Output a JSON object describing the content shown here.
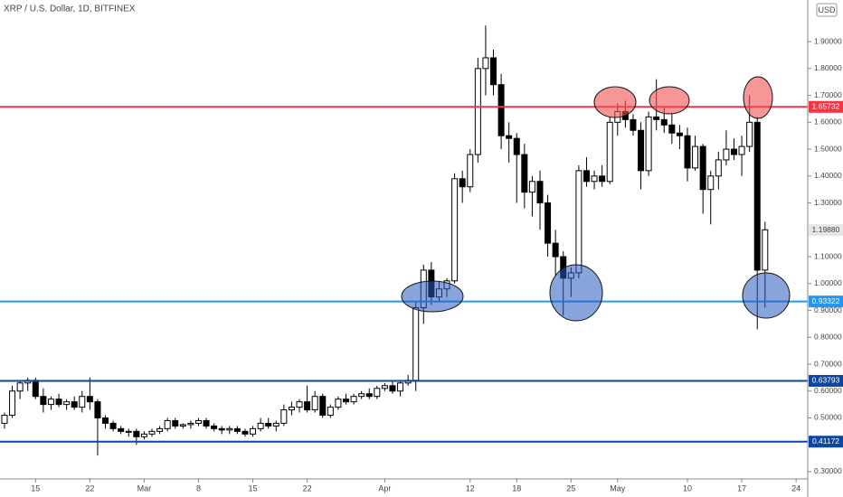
{
  "chart_data": {
    "type": "candlestick",
    "title": "XRP / U.S. Dollar, 1D, BITFINEX",
    "currency": "USD",
    "open": [
      0.48,
      0.51,
      0.6,
      0.63,
      0.64,
      0.58,
      0.55,
      0.57,
      0.55,
      0.56,
      0.54,
      0.58,
      0.56,
      0.5,
      0.48,
      0.46,
      0.45,
      0.45,
      0.43,
      0.44,
      0.45,
      0.46,
      0.49,
      0.47,
      0.475,
      0.48,
      0.49,
      0.47,
      0.46,
      0.455,
      0.46,
      0.45,
      0.44,
      0.46,
      0.48,
      0.47,
      0.48,
      0.53,
      0.54,
      0.56,
      0.53,
      0.58,
      0.51,
      0.54,
      0.57,
      0.56,
      0.58,
      0.59,
      0.58,
      0.61,
      0.62,
      0.6,
      0.63,
      0.64,
      0.91,
      1.05,
      0.95,
      0.98,
      1.01,
      1.39,
      1.36,
      1.48,
      1.8,
      1.84,
      1.74,
      1.55,
      1.54,
      1.48,
      1.34,
      1.38,
      1.3,
      1.15,
      1.1,
      1.02,
      1.04,
      1.42,
      1.38,
      1.4,
      1.38,
      1.6,
      1.64,
      1.61,
      1.57,
      1.42,
      1.62,
      1.61,
      1.59,
      1.56,
      1.55,
      1.43,
      1.51,
      1.35,
      1.4,
      1.46,
      1.5,
      1.48,
      1.51,
      1.6,
      1.05
    ],
    "high": [
      0.52,
      0.62,
      0.64,
      0.65,
      0.65,
      0.61,
      0.58,
      0.59,
      0.57,
      0.58,
      0.6,
      0.65,
      0.57,
      0.51,
      0.49,
      0.47,
      0.46,
      0.46,
      0.45,
      0.46,
      0.47,
      0.5,
      0.5,
      0.48,
      0.49,
      0.5,
      0.5,
      0.48,
      0.47,
      0.47,
      0.47,
      0.46,
      0.47,
      0.5,
      0.5,
      0.49,
      0.55,
      0.56,
      0.57,
      0.62,
      0.6,
      0.59,
      0.55,
      0.58,
      0.59,
      0.59,
      0.6,
      0.61,
      0.62,
      0.63,
      0.64,
      0.64,
      0.66,
      0.93,
      1.07,
      1.08,
      1.01,
      1.02,
      1.41,
      1.42,
      1.5,
      1.84,
      1.96,
      1.87,
      1.78,
      1.6,
      1.56,
      1.52,
      1.4,
      1.42,
      1.33,
      1.2,
      1.12,
      1.06,
      1.44,
      1.47,
      1.42,
      1.44,
      1.62,
      1.67,
      1.68,
      1.63,
      1.6,
      1.64,
      1.76,
      1.66,
      1.63,
      1.59,
      1.58,
      1.55,
      1.52,
      1.42,
      1.49,
      1.57,
      1.54,
      1.55,
      1.7,
      1.62,
      1.23
    ],
    "low": [
      0.46,
      0.5,
      0.57,
      0.6,
      0.57,
      0.52,
      0.53,
      0.54,
      0.53,
      0.53,
      0.52,
      0.53,
      0.36,
      0.46,
      0.45,
      0.44,
      0.43,
      0.4,
      0.42,
      0.43,
      0.44,
      0.45,
      0.46,
      0.46,
      0.46,
      0.47,
      0.46,
      0.45,
      0.44,
      0.44,
      0.44,
      0.43,
      0.43,
      0.45,
      0.46,
      0.45,
      0.47,
      0.51,
      0.52,
      0.52,
      0.52,
      0.5,
      0.5,
      0.53,
      0.55,
      0.55,
      0.57,
      0.57,
      0.57,
      0.6,
      0.59,
      0.58,
      0.62,
      0.6,
      0.85,
      0.92,
      0.93,
      0.95,
      1.0,
      1.3,
      1.34,
      1.45,
      1.7,
      1.7,
      1.5,
      1.45,
      1.3,
      1.28,
      1.25,
      1.2,
      1.1,
      1.03,
      0.88,
      0.95,
      1.02,
      1.36,
      1.35,
      1.36,
      1.37,
      1.55,
      1.58,
      1.55,
      1.35,
      1.4,
      1.57,
      1.56,
      1.52,
      1.5,
      1.38,
      1.42,
      1.26,
      1.22,
      1.35,
      1.44,
      1.46,
      1.4,
      1.49,
      0.83,
      0.91
    ],
    "close": [
      0.51,
      0.6,
      0.63,
      0.64,
      0.58,
      0.55,
      0.57,
      0.55,
      0.56,
      0.54,
      0.58,
      0.56,
      0.5,
      0.48,
      0.46,
      0.45,
      0.45,
      0.43,
      0.44,
      0.45,
      0.46,
      0.49,
      0.47,
      0.475,
      0.48,
      0.49,
      0.47,
      0.46,
      0.455,
      0.46,
      0.45,
      0.44,
      0.46,
      0.48,
      0.47,
      0.48,
      0.53,
      0.54,
      0.56,
      0.53,
      0.58,
      0.51,
      0.54,
      0.57,
      0.56,
      0.58,
      0.59,
      0.58,
      0.61,
      0.62,
      0.6,
      0.63,
      0.64,
      0.91,
      1.05,
      0.95,
      0.98,
      1.01,
      1.39,
      1.36,
      1.48,
      1.8,
      1.84,
      1.74,
      1.55,
      1.54,
      1.48,
      1.34,
      1.38,
      1.3,
      1.15,
      1.1,
      1.02,
      1.04,
      1.42,
      1.38,
      1.4,
      1.38,
      1.6,
      1.64,
      1.61,
      1.57,
      1.42,
      1.62,
      1.61,
      1.59,
      1.56,
      1.55,
      1.43,
      1.51,
      1.35,
      1.4,
      1.46,
      1.5,
      1.48,
      1.51,
      1.6,
      1.05,
      1.2
    ],
    "xlim": [
      -0.58,
      103.5
    ],
    "xticks": [
      {
        "value": 4,
        "label": "15"
      },
      {
        "value": 11,
        "label": "22"
      },
      {
        "value": 18,
        "label": "Mar"
      },
      {
        "value": 25,
        "label": "8"
      },
      {
        "value": 32,
        "label": "15"
      },
      {
        "value": 39,
        "label": "22"
      },
      {
        "value": 49,
        "label": "Apr"
      },
      {
        "value": 60,
        "label": "12"
      },
      {
        "value": 66,
        "label": "18"
      },
      {
        "value": 73,
        "label": "25"
      },
      {
        "value": 79,
        "label": "May"
      },
      {
        "value": 88,
        "label": "10"
      },
      {
        "value": 95,
        "label": "17"
      },
      {
        "value": 102,
        "label": "24"
      }
    ],
    "ylim": [
      0.273,
      2.055
    ],
    "yticks": [
      {
        "value": 1.9,
        "label": "1.90000"
      },
      {
        "value": 1.8,
        "label": "1.80000"
      },
      {
        "value": 1.7,
        "label": "1.70000"
      },
      {
        "value": 1.6,
        "label": "1.60000"
      },
      {
        "value": 1.5,
        "label": "1.50000"
      },
      {
        "value": 1.4,
        "label": "1.40000"
      },
      {
        "value": 1.3,
        "label": "1.30000"
      },
      {
        "value": 1.1,
        "label": "1.10000"
      },
      {
        "value": 1.0,
        "label": "1.00000"
      },
      {
        "value": 0.9,
        "label": "0.90000"
      },
      {
        "value": 0.8,
        "label": "0.80000"
      },
      {
        "value": 0.7,
        "label": "0.70000"
      },
      {
        "value": 0.6,
        "label": "0.60000"
      },
      {
        "value": 0.5,
        "label": "0.50000"
      },
      {
        "value": 0.3,
        "label": "0.30000"
      }
    ],
    "last_price": {
      "value": 1.1988,
      "label": "1.19880"
    },
    "price_lines": [
      {
        "value": 1.65732,
        "color": "#f23645"
      },
      {
        "value": 0.93322,
        "color": "#2196f3"
      },
      {
        "value": 0.63793,
        "color": "#0d47a1"
      },
      {
        "value": 0.41172,
        "color": "#0d47a1"
      }
    ],
    "up_color": "#ffffff",
    "down_color": "#000000",
    "grid": false
  }
}
